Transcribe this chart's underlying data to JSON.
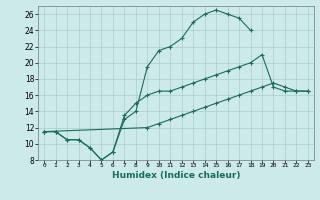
{
  "background_color": "#cceaea",
  "grid_color": "#aacccc",
  "line_color": "#1a6b5a",
  "xlabel": "Humidex (Indice chaleur)",
  "xlim": [
    -0.5,
    23.5
  ],
  "ylim": [
    8,
    27
  ],
  "xticks": [
    0,
    1,
    2,
    3,
    4,
    5,
    6,
    7,
    8,
    9,
    10,
    11,
    12,
    13,
    14,
    15,
    16,
    17,
    18,
    19,
    20,
    21,
    22,
    23
  ],
  "yticks": [
    8,
    10,
    12,
    14,
    16,
    18,
    20,
    22,
    24,
    26
  ],
  "line1_x": [
    0,
    1,
    2,
    3,
    4,
    5,
    6,
    7,
    8,
    9,
    10,
    11,
    12,
    13,
    14,
    15,
    16,
    17,
    18
  ],
  "line1_y": [
    11.5,
    11.5,
    10.5,
    10.5,
    9.5,
    8.0,
    9.0,
    13.0,
    14.0,
    19.5,
    21.5,
    22.0,
    23.0,
    25.0,
    26.0,
    26.5,
    26.0,
    25.5,
    24.0
  ],
  "line2_x": [
    0,
    1,
    2,
    3,
    4,
    5,
    6,
    7,
    8,
    9,
    10,
    11,
    12,
    13,
    14,
    15,
    16,
    17,
    18,
    19,
    20,
    21,
    22,
    23
  ],
  "line2_y": [
    11.5,
    11.5,
    10.5,
    10.5,
    9.5,
    8.0,
    9.0,
    13.5,
    15.0,
    16.0,
    16.5,
    16.5,
    17.0,
    17.5,
    18.0,
    18.5,
    19.0,
    19.5,
    20.0,
    21.0,
    17.0,
    16.5,
    16.5,
    16.5
  ],
  "line3_x": [
    0,
    9,
    10,
    11,
    12,
    13,
    14,
    15,
    16,
    17,
    18,
    19,
    20,
    21,
    22,
    23
  ],
  "line3_y": [
    11.5,
    12.0,
    12.5,
    13.0,
    13.5,
    14.0,
    14.5,
    15.0,
    15.5,
    16.0,
    16.5,
    17.0,
    17.5,
    17.0,
    16.5,
    16.5
  ]
}
